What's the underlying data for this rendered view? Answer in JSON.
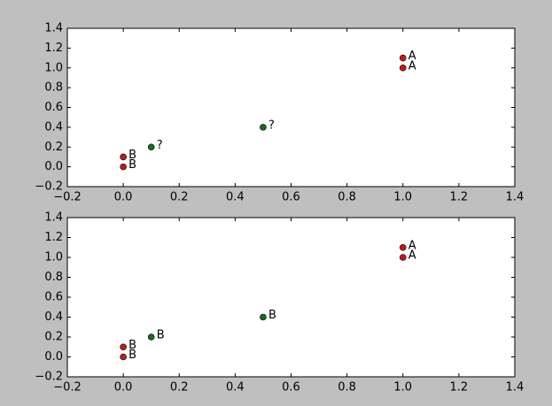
{
  "chart_data": [
    {
      "type": "scatter",
      "series": [
        {
          "color": "#bf1b1b",
          "x": [
            1,
            1,
            0,
            0
          ],
          "values": [
            1.1,
            1.0,
            0.1,
            0
          ],
          "labels": [
            "A",
            "A",
            "B",
            "B"
          ]
        },
        {
          "color": "#1b6b1b",
          "x": [
            0.5,
            0.1
          ],
          "values": [
            0.4,
            0.2
          ],
          "labels": [
            "?",
            "?"
          ]
        }
      ],
      "xlim": [
        -0.2,
        1.4
      ],
      "xticks": [
        {
          "value": -0.2,
          "label": "−0.2"
        },
        {
          "value": 0,
          "label": "0.0"
        },
        0.2,
        0.4,
        0.6,
        0.8,
        {
          "value": 1,
          "label": "1.0"
        },
        1.2,
        1.4
      ],
      "ylim": [
        -0.2,
        1.4
      ],
      "yticks": [
        {
          "value": -0.2,
          "label": "−0.2"
        },
        {
          "value": 0,
          "label": "0.0"
        },
        0.2,
        0.4,
        0.6,
        0.8,
        {
          "value": 1,
          "label": "1.0"
        },
        1.2,
        1.4
      ]
    },
    {
      "type": "scatter",
      "series": [
        {
          "color": "#bf1b1b",
          "x": [
            1,
            1,
            0,
            0
          ],
          "values": [
            1.1,
            1.0,
            0.1,
            0
          ],
          "labels": [
            "A",
            "A",
            "B",
            "B"
          ]
        },
        {
          "color": "#1b6b1b",
          "x": [
            0.5,
            0.1
          ],
          "values": [
            0.4,
            0.2
          ],
          "labels": [
            "B",
            "B"
          ]
        }
      ],
      "xlim": [
        -0.2,
        1.4
      ],
      "xticks": [
        {
          "value": -0.2,
          "label": "−0.2"
        },
        {
          "value": 0,
          "label": "0.0"
        },
        0.2,
        0.4,
        0.6,
        0.8,
        {
          "value": 1,
          "label": "1.0"
        },
        1.2,
        1.4
      ],
      "ylim": [
        -0.2,
        1.4
      ],
      "yticks": [
        {
          "value": -0.2,
          "label": "−0.2"
        },
        {
          "value": 0,
          "label": "0.0"
        },
        0.2,
        0.4,
        0.6,
        0.8,
        {
          "value": 1,
          "label": "1.0"
        },
        1.2,
        1.4
      ]
    }
  ]
}
